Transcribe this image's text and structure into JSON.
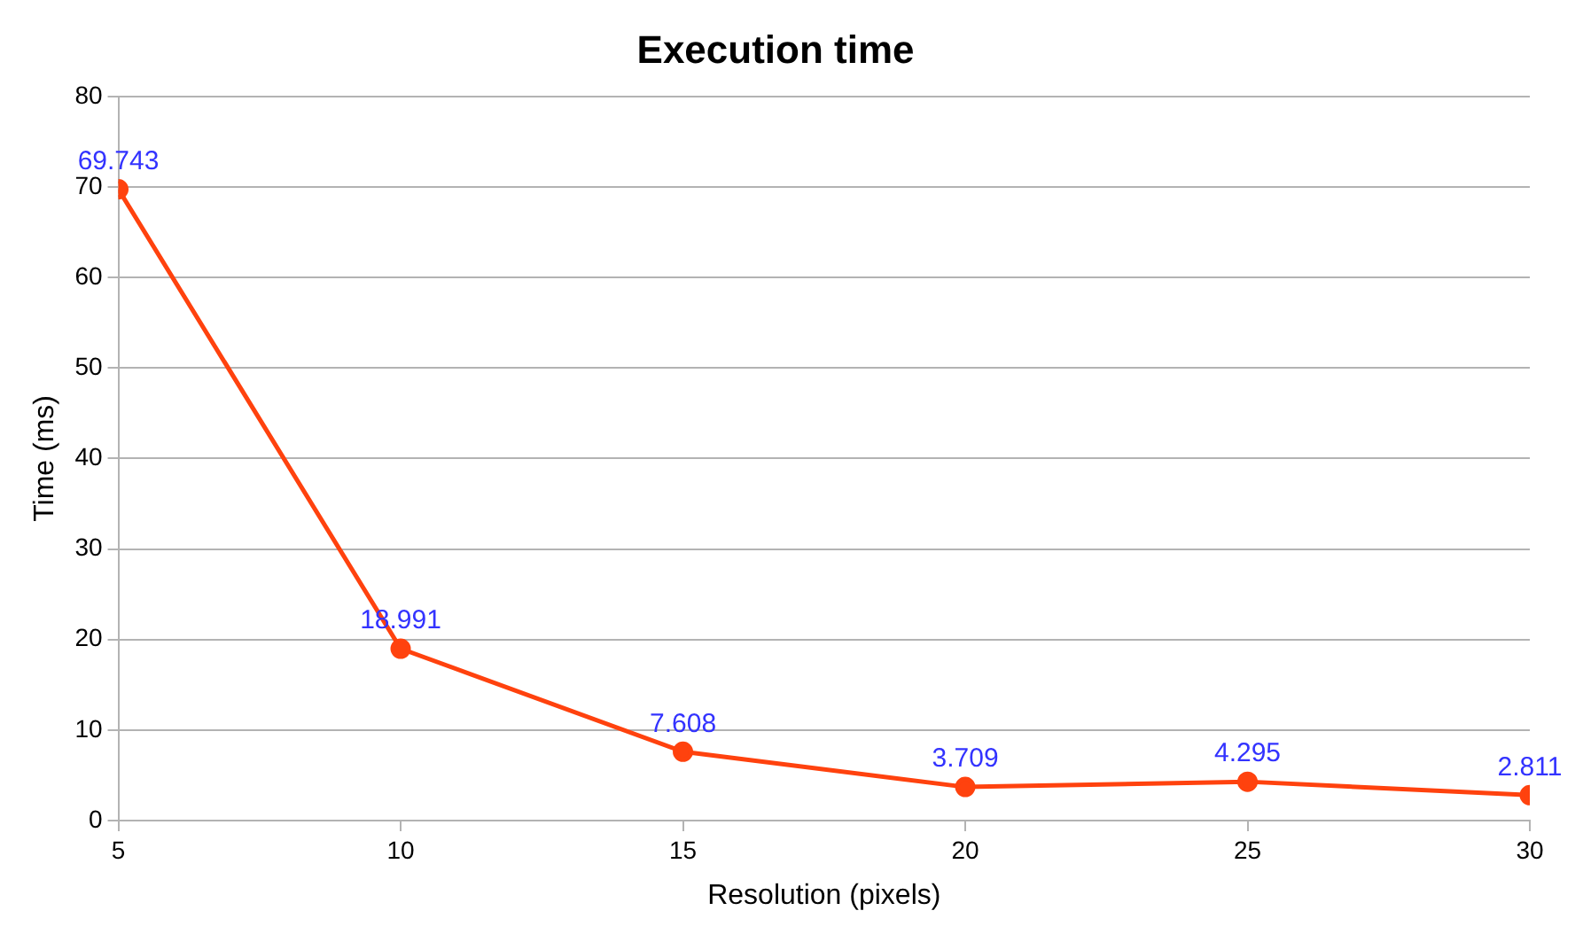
{
  "chart_data": {
    "type": "line",
    "title": "Execution time",
    "xlabel": "Resolution (pixels)",
    "ylabel": "Time (ms)",
    "x": [
      5,
      10,
      15,
      20,
      25,
      30
    ],
    "series": [
      {
        "color": "#ff420e",
        "values": [
          69.743,
          18.991,
          7.608,
          3.709,
          4.295,
          2.811
        ]
      }
    ],
    "xlim": [
      5,
      30
    ],
    "xticks": [
      5,
      10,
      15,
      20,
      25,
      30
    ],
    "ylim": [
      0,
      80
    ],
    "yticks": [
      0,
      10,
      20,
      30,
      40,
      50,
      60,
      70,
      80
    ],
    "grid": "y",
    "marker": "circle",
    "line_style": "solid",
    "data_labels": true,
    "legend": false
  }
}
